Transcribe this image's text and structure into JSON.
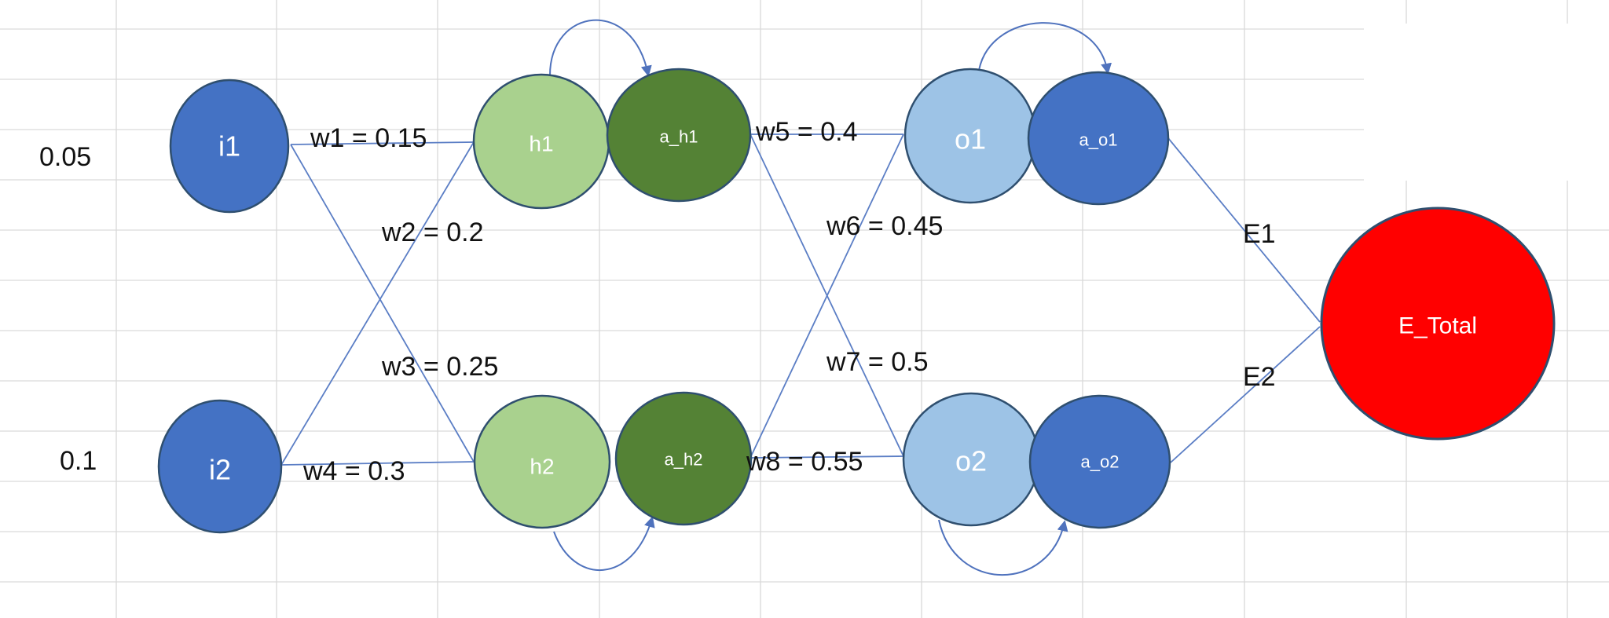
{
  "inputs": {
    "i1": {
      "label": "i1",
      "value": "0.05"
    },
    "i2": {
      "label": "i2",
      "value": "0.1"
    }
  },
  "hidden": {
    "h1": "h1",
    "a_h1": "a_h1",
    "h2": "h2",
    "a_h2": "a_h2"
  },
  "outputs": {
    "o1": "o1",
    "a_o1": "a_o1",
    "o2": "o2",
    "a_o2": "a_o2"
  },
  "total": "E_Total",
  "errors": {
    "e1": "E1",
    "e2": "E2"
  },
  "weights": {
    "w1": "w1 = 0.15",
    "w2": "w2 = 0.2",
    "w3": "w3 = 0.25",
    "w4": "w4 = 0.3",
    "w5": "w5 = 0.4",
    "w6": "w6 = 0.45",
    "w7": "w7 = 0.5",
    "w8": "w8 = 0.55"
  },
  "colors": {
    "input_node": "#4472c4",
    "hidden_pre": "#a9d18e",
    "hidden_act": "#548235",
    "output_pre": "#9dc3e6",
    "output_act": "#4472c4",
    "total": "#ff0000",
    "node_outline": "#2f4f6f"
  }
}
